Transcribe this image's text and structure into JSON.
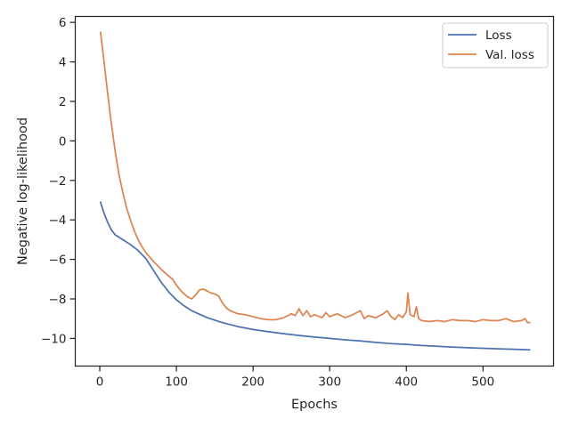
{
  "chart_data": {
    "type": "line",
    "title": "",
    "xlabel": "Epochs",
    "ylabel": "Negative log-likelihood",
    "xlim": [
      -32,
      592
    ],
    "ylim": [
      -11.4,
      6.3
    ],
    "xticks": [
      0,
      100,
      200,
      300,
      400,
      500
    ],
    "yticks": [
      6,
      4,
      2,
      0,
      -2,
      -4,
      -6,
      -8,
      -10
    ],
    "ytick_labels": [
      "6",
      "4",
      "2",
      "0",
      "−2",
      "−4",
      "−6",
      "−8",
      "−10"
    ],
    "grid": false,
    "legend_position": "top-right",
    "series": [
      {
        "name": "Loss",
        "color": "#4c72b0",
        "points": [
          [
            1,
            -3.1
          ],
          [
            5,
            -3.6
          ],
          [
            10,
            -4.1
          ],
          [
            15,
            -4.5
          ],
          [
            20,
            -4.75
          ],
          [
            30,
            -5.0
          ],
          [
            40,
            -5.25
          ],
          [
            50,
            -5.55
          ],
          [
            60,
            -5.95
          ],
          [
            70,
            -6.55
          ],
          [
            80,
            -7.15
          ],
          [
            90,
            -7.65
          ],
          [
            100,
            -8.05
          ],
          [
            110,
            -8.35
          ],
          [
            120,
            -8.6
          ],
          [
            140,
            -8.95
          ],
          [
            160,
            -9.2
          ],
          [
            180,
            -9.4
          ],
          [
            200,
            -9.55
          ],
          [
            220,
            -9.66
          ],
          [
            240,
            -9.76
          ],
          [
            260,
            -9.85
          ],
          [
            280,
            -9.93
          ],
          [
            300,
            -10.0
          ],
          [
            320,
            -10.07
          ],
          [
            340,
            -10.13
          ],
          [
            360,
            -10.2
          ],
          [
            380,
            -10.26
          ],
          [
            400,
            -10.3
          ],
          [
            420,
            -10.36
          ],
          [
            440,
            -10.4
          ],
          [
            460,
            -10.44
          ],
          [
            480,
            -10.47
          ],
          [
            500,
            -10.5
          ],
          [
            520,
            -10.53
          ],
          [
            540,
            -10.55
          ],
          [
            561,
            -10.58
          ]
        ]
      },
      {
        "name": "Val. loss",
        "color": "#dd8452",
        "points": [
          [
            1,
            5.5
          ],
          [
            5,
            4.2
          ],
          [
            10,
            2.5
          ],
          [
            15,
            0.9
          ],
          [
            20,
            -0.5
          ],
          [
            25,
            -1.7
          ],
          [
            30,
            -2.6
          ],
          [
            35,
            -3.4
          ],
          [
            40,
            -4.0
          ],
          [
            45,
            -4.55
          ],
          [
            50,
            -5.0
          ],
          [
            55,
            -5.35
          ],
          [
            60,
            -5.65
          ],
          [
            70,
            -6.1
          ],
          [
            80,
            -6.5
          ],
          [
            90,
            -6.85
          ],
          [
            95,
            -7.0
          ],
          [
            100,
            -7.3
          ],
          [
            105,
            -7.55
          ],
          [
            110,
            -7.75
          ],
          [
            115,
            -7.9
          ],
          [
            120,
            -8.0
          ],
          [
            125,
            -7.8
          ],
          [
            130,
            -7.55
          ],
          [
            135,
            -7.5
          ],
          [
            140,
            -7.6
          ],
          [
            145,
            -7.7
          ],
          [
            150,
            -7.75
          ],
          [
            155,
            -7.85
          ],
          [
            160,
            -8.2
          ],
          [
            165,
            -8.45
          ],
          [
            170,
            -8.6
          ],
          [
            180,
            -8.75
          ],
          [
            190,
            -8.8
          ],
          [
            200,
            -8.9
          ],
          [
            210,
            -9.0
          ],
          [
            220,
            -9.05
          ],
          [
            230,
            -9.05
          ],
          [
            240,
            -8.95
          ],
          [
            250,
            -8.75
          ],
          [
            255,
            -8.85
          ],
          [
            260,
            -8.5
          ],
          [
            265,
            -8.85
          ],
          [
            270,
            -8.6
          ],
          [
            275,
            -8.9
          ],
          [
            280,
            -8.8
          ],
          [
            290,
            -8.95
          ],
          [
            295,
            -8.7
          ],
          [
            300,
            -8.9
          ],
          [
            310,
            -8.75
          ],
          [
            320,
            -8.95
          ],
          [
            330,
            -8.8
          ],
          [
            340,
            -8.6
          ],
          [
            345,
            -9.0
          ],
          [
            350,
            -8.85
          ],
          [
            360,
            -8.95
          ],
          [
            370,
            -8.75
          ],
          [
            375,
            -8.6
          ],
          [
            380,
            -8.9
          ],
          [
            385,
            -9.05
          ],
          [
            390,
            -8.8
          ],
          [
            395,
            -8.95
          ],
          [
            400,
            -8.65
          ],
          [
            402,
            -7.7
          ],
          [
            405,
            -8.8
          ],
          [
            410,
            -8.9
          ],
          [
            413,
            -8.4
          ],
          [
            416,
            -9.0
          ],
          [
            420,
            -9.1
          ],
          [
            430,
            -9.15
          ],
          [
            440,
            -9.1
          ],
          [
            450,
            -9.15
          ],
          [
            460,
            -9.05
          ],
          [
            470,
            -9.1
          ],
          [
            480,
            -9.1
          ],
          [
            490,
            -9.15
          ],
          [
            500,
            -9.05
          ],
          [
            510,
            -9.1
          ],
          [
            520,
            -9.1
          ],
          [
            530,
            -9.0
          ],
          [
            540,
            -9.15
          ],
          [
            550,
            -9.1
          ],
          [
            555,
            -9.0
          ],
          [
            558,
            -9.2
          ],
          [
            561,
            -9.2
          ]
        ]
      }
    ]
  }
}
